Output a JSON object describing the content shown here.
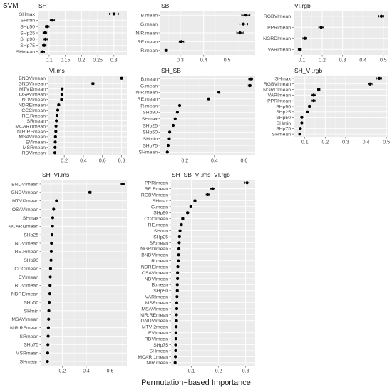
{
  "figure": {
    "title": "SVM",
    "xlabel": "Permutation−based Importance"
  },
  "chart_data": [
    {
      "type": "scatter",
      "title": "SH",
      "x_ticks": [
        0.1,
        0.15,
        0.2,
        0.25,
        0.3
      ],
      "xlim": [
        0.065,
        0.34
      ],
      "grid": true,
      "legend": "none",
      "categories": [
        "SHmax",
        "SHmin",
        "SHp50",
        "SHp25",
        "SHp90",
        "SHp75",
        "SHmean"
      ],
      "values": [
        0.3,
        0.11,
        0.094,
        0.087,
        0.089,
        0.085,
        0.08
      ],
      "errors": [
        0.014,
        0.007,
        0.006,
        0.006,
        0.006,
        0.006,
        0.006
      ]
    },
    {
      "type": "scatter",
      "title": "SB",
      "x_ticks": [
        0.3,
        0.4,
        0.5
      ],
      "xlim": [
        0.215,
        0.62
      ],
      "grid": true,
      "legend": "none",
      "categories": [
        "B.mean",
        "G.mean",
        "NIR.mean",
        "RE.mean",
        "R.mean"
      ],
      "values": [
        0.58,
        0.57,
        0.555,
        0.305,
        0.24
      ],
      "errors": [
        0.018,
        0.018,
        0.014,
        0.01,
        0.006
      ]
    },
    {
      "type": "scatter",
      "title": "VI.rgb",
      "x_ticks": [
        0.1,
        0.2,
        0.3,
        0.4,
        0.5
      ],
      "xlim": [
        0.06,
        0.525
      ],
      "grid": true,
      "legend": "none",
      "categories": [
        "RGBVImean",
        "PPRImean",
        "NGRDImean",
        "VARImean"
      ],
      "values": [
        0.49,
        0.195,
        0.115,
        0.09
      ],
      "errors": [
        0.012,
        0.012,
        0.01,
        0.008
      ]
    },
    {
      "type": "scatter",
      "title": "VI.ms",
      "x_ticks": [
        0.2,
        0.4,
        0.6,
        0.8
      ],
      "xlim": [
        0.035,
        0.855
      ],
      "grid": true,
      "legend": "none",
      "categories": [
        "BNDVImean",
        "GNDVImean",
        "MTVI2mean",
        "OSAVImean",
        "NDVImean",
        "NDREImean",
        "CCCImean",
        "RE.Rmean",
        "SRmean",
        "MCARI1mean",
        "NIR.REmean",
        "MSAVImean",
        "EVImean",
        "MSRmean",
        "RDVImean"
      ],
      "values": [
        0.8,
        0.5,
        0.178,
        0.176,
        0.172,
        0.142,
        0.132,
        0.124,
        0.118,
        0.114,
        0.112,
        0.108,
        0.106,
        0.104,
        0.102
      ],
      "errors": [
        0.012,
        0.012,
        0.004,
        0.004,
        0.004,
        0.004,
        0.004,
        0.004,
        0.004,
        0.004,
        0.004,
        0.004,
        0.004,
        0.004,
        0.004
      ]
    },
    {
      "type": "scatter",
      "title": "SH_SB",
      "x_ticks": [
        0.2,
        0.4,
        0.6
      ],
      "xlim": [
        0.035,
        0.675
      ],
      "grid": true,
      "legend": "none",
      "categories": [
        "B.mean",
        "G.mean",
        "NIR.mean",
        "RE.mean",
        "R.mean",
        "SHp90",
        "SHmax",
        "SHp25",
        "SHp50",
        "SHmin",
        "SHp75",
        "SHmean"
      ],
      "values": [
        0.645,
        0.64,
        0.43,
        0.36,
        0.165,
        0.15,
        0.135,
        0.122,
        0.098,
        0.095,
        0.088,
        0.082
      ],
      "errors": [
        0.014,
        0.012,
        0.006,
        0.008,
        0.004,
        0.004,
        0.004,
        0.004,
        0.004,
        0.004,
        0.004,
        0.004
      ]
    },
    {
      "type": "scatter",
      "title": "SH_VI.rgb",
      "x_ticks": [
        0.1,
        0.2,
        0.3,
        0.4,
        0.5
      ],
      "xlim": [
        0.045,
        0.51
      ],
      "grid": true,
      "legend": "none",
      "categories": [
        "SHmax",
        "RGBVImean",
        "NGRDImean",
        "VARImean",
        "PPRImean",
        "SHp90",
        "SHp25",
        "SHp50",
        "SHmin",
        "SHp75",
        "SHmean"
      ],
      "values": [
        0.465,
        0.42,
        0.168,
        0.143,
        0.143,
        0.123,
        0.113,
        0.085,
        0.085,
        0.078,
        0.075
      ],
      "errors": [
        0.012,
        0.01,
        0.006,
        0.01,
        0.01,
        0.006,
        0.006,
        0.004,
        0.004,
        0.004,
        0.004
      ]
    },
    {
      "type": "scatter",
      "title": "SH_VI.ms",
      "x_ticks": [
        0.2,
        0.4,
        0.6
      ],
      "xlim": [
        0.025,
        0.74
      ],
      "grid": true,
      "legend": "none",
      "categories": [
        "BNDVImean",
        "GNDVImean",
        "MTVI2mean",
        "OSAVImean",
        "SHmax",
        "MCARI1mean",
        "SHp25",
        "NDVImean",
        "RE.Rmean",
        "SHp90",
        "CCCImean",
        "EVImean",
        "RDVImean",
        "NDREImean",
        "SHp50",
        "SHmin",
        "MSAVImean",
        "NIR.REmean",
        "SRmean",
        "SHp75",
        "MSRmean",
        "SHmean"
      ],
      "values": [
        0.705,
        0.43,
        0.152,
        0.128,
        0.12,
        0.118,
        0.114,
        0.11,
        0.108,
        0.106,
        0.102,
        0.1,
        0.098,
        0.096,
        0.092,
        0.088,
        0.086,
        0.084,
        0.082,
        0.08,
        0.078,
        0.076
      ],
      "errors": [
        0.014,
        0.012,
        0.004,
        0.004,
        0.004,
        0.004,
        0.004,
        0.004,
        0.004,
        0.004,
        0.004,
        0.004,
        0.004,
        0.004,
        0.004,
        0.004,
        0.004,
        0.004,
        0.004,
        0.004,
        0.004,
        0.004
      ]
    },
    {
      "type": "scatter",
      "title": "SH_SB_VI.ms_VI.rgb",
      "x_ticks": [
        0.1,
        0.2,
        0.3
      ],
      "xlim": [
        0.025,
        0.335
      ],
      "grid": true,
      "legend": "none",
      "categories": [
        "PPRImean",
        "RE.Rmean",
        "RGBVImean",
        "SHmax",
        "G.mean",
        "SHp90",
        "CCCImean",
        "RE.mean",
        "SHmin",
        "SHp25",
        "SRmean",
        "NGRDImean",
        "BNDVImean",
        "R.mean",
        "NDREImean",
        "OSAVImean",
        "NDVImean",
        "B.mean",
        "SHp50",
        "VARImean",
        "MSRmean",
        "MSAVImean",
        "NIR.REmean",
        "GNDVImean",
        "MTVI2mean",
        "EVImean",
        "RDVImean",
        "SHp75",
        "SHmean",
        "MCARI1mean",
        "NIR.mean"
      ],
      "values": [
        0.305,
        0.178,
        0.16,
        0.113,
        0.098,
        0.086,
        0.068,
        0.063,
        0.058,
        0.056,
        0.055,
        0.054,
        0.053,
        0.052,
        0.05,
        0.049,
        0.049,
        0.048,
        0.048,
        0.047,
        0.046,
        0.046,
        0.045,
        0.045,
        0.044,
        0.043,
        0.043,
        0.042,
        0.042,
        0.041,
        0.04
      ],
      "errors": [
        0.008,
        0.008,
        0.006,
        0.004,
        0.004,
        0.004,
        0.004,
        0.004,
        0.003,
        0.003,
        0.003,
        0.003,
        0.003,
        0.003,
        0.003,
        0.003,
        0.003,
        0.003,
        0.003,
        0.003,
        0.003,
        0.003,
        0.003,
        0.003,
        0.003,
        0.003,
        0.003,
        0.003,
        0.003,
        0.003,
        0.003
      ]
    }
  ]
}
